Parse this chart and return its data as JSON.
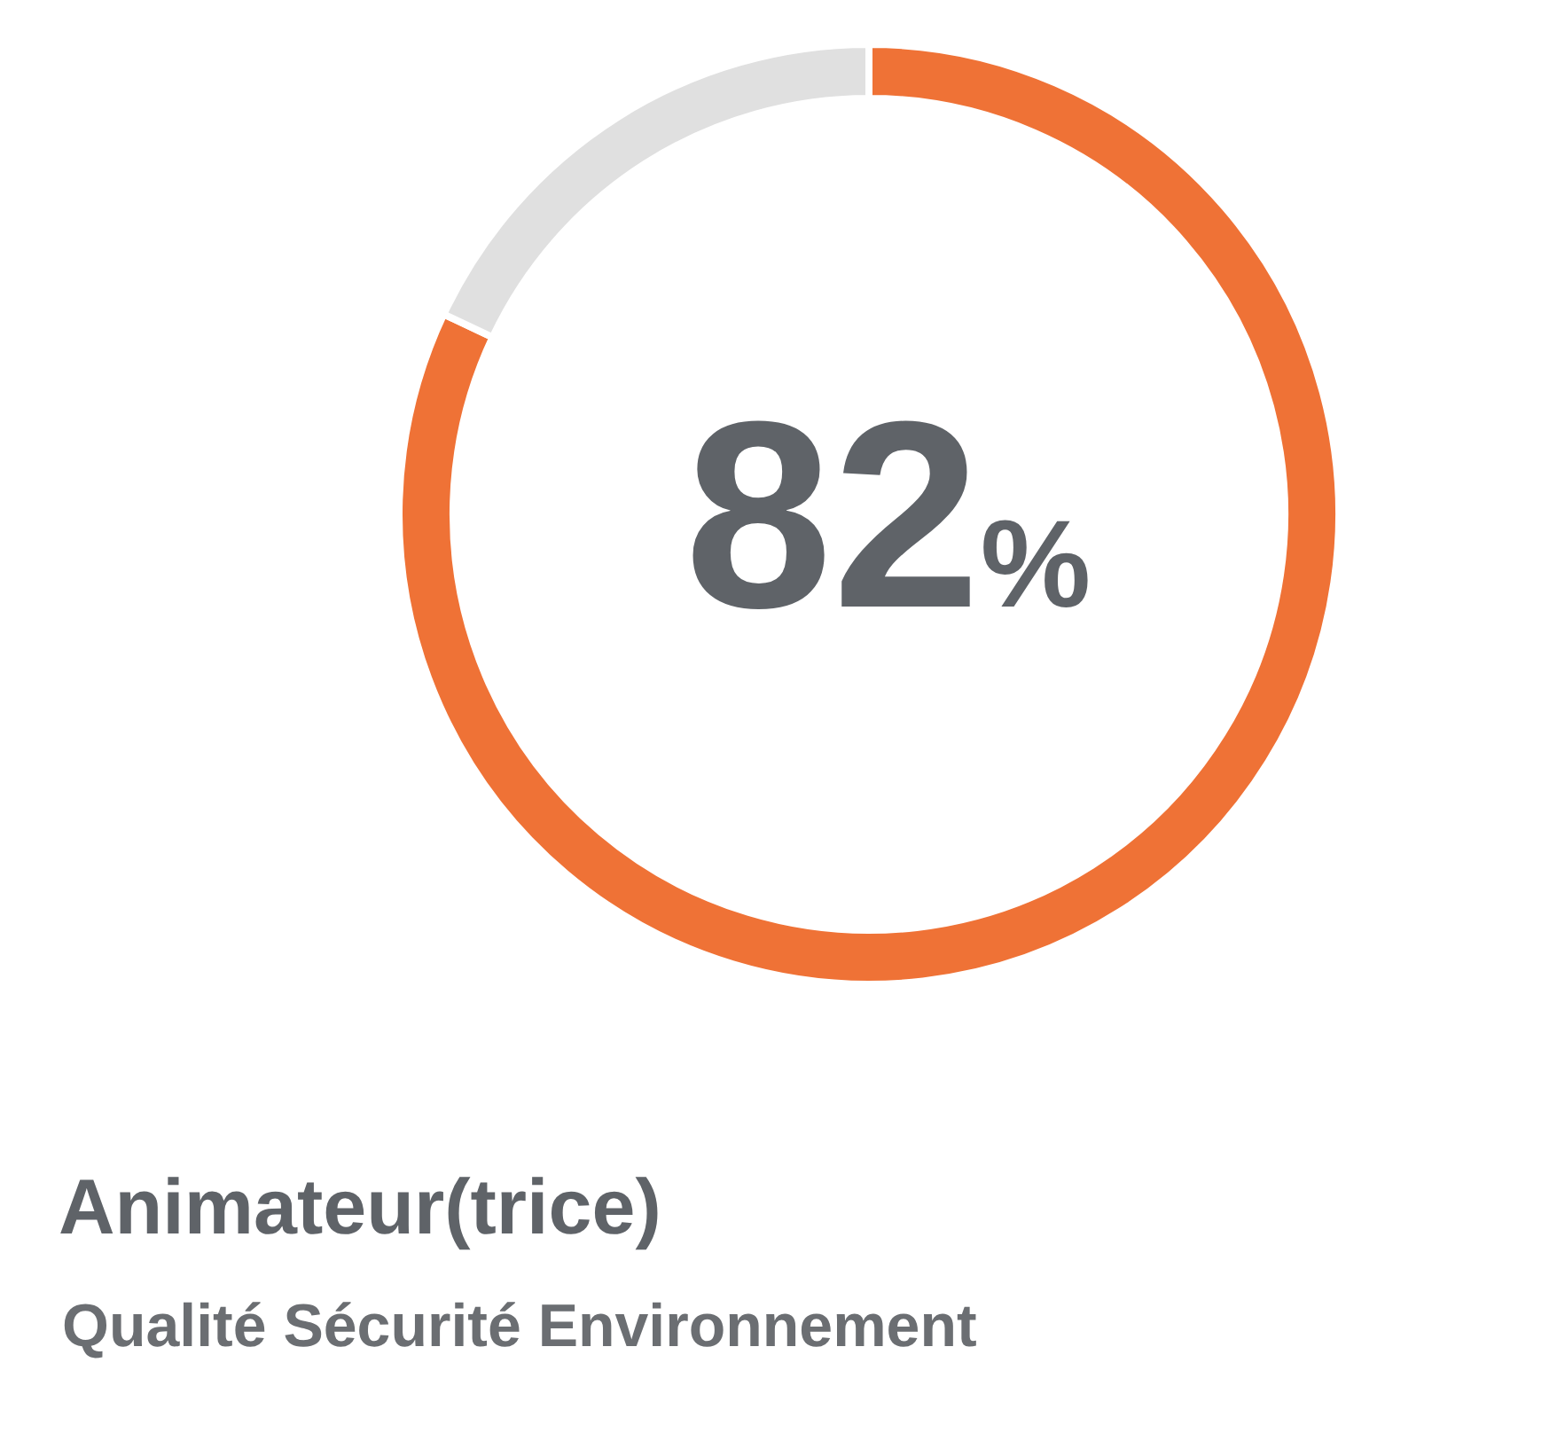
{
  "chart_data": {
    "type": "donut",
    "title": "Animateur(trice)",
    "subtitle": "Qualité Sécurité Environnement",
    "categories": [
      null,
      null
    ],
    "values": [
      82,
      18
    ],
    "colors": [
      "#ef7236",
      "#e0e0e0"
    ],
    "value_labels": [
      "82%",
      null
    ],
    "legend": false
  }
}
